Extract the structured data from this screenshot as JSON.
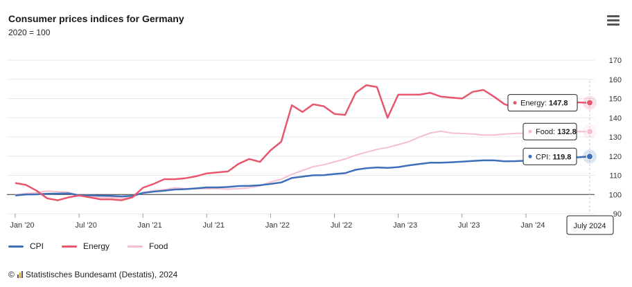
{
  "header": {
    "title": "Consumer prices indices for Germany",
    "subtitle": "2020 = 100"
  },
  "menu": {
    "icon": "hamburger-menu-icon"
  },
  "legend": [
    {
      "label": "CPI",
      "color": "#3d6fb8"
    },
    {
      "label": "Energy",
      "color": "#e8566e"
    },
    {
      "label": "Food",
      "color": "#f5bfcb"
    }
  ],
  "footer": {
    "copyright": "©",
    "source": "Statistisches Bundesamt (Destatis), 2024"
  },
  "hover": {
    "date_label": "July 2024"
  },
  "chart_data": {
    "type": "line",
    "title": "Consumer prices indices for Germany",
    "subtitle": "2020 = 100",
    "ylim": [
      90,
      170
    ],
    "yticks": [
      90,
      100,
      110,
      120,
      130,
      140,
      150,
      160,
      170
    ],
    "x_start": "2020-01",
    "x_end": "2024-07",
    "xticks": [
      "Jan '20",
      "Jul '20",
      "Jan '21",
      "Jul '21",
      "Jan '22",
      "Jul '22",
      "Jan '23",
      "Jul '23",
      "Jan '24"
    ],
    "reference_line": 100,
    "series": [
      {
        "name": "CPI",
        "color": "#3d6fb8",
        "values": [
          99.5,
          100.0,
          100.1,
          100.4,
          100.5,
          100.6,
          99.6,
          99.6,
          99.4,
          99.3,
          99.0,
          99.3,
          100.8,
          101.5,
          102.0,
          102.6,
          102.8,
          103.2,
          103.7,
          103.7,
          103.9,
          104.4,
          104.5,
          104.8,
          105.5,
          106.3,
          108.6,
          109.3,
          110.0,
          110.1,
          110.7,
          111.1,
          112.9,
          113.7,
          114.1,
          113.9,
          114.3,
          115.2,
          115.9,
          116.6,
          116.6,
          116.8,
          117.1,
          117.5,
          117.8,
          117.8,
          117.3,
          117.4,
          117.6,
          118.1,
          118.6,
          119.2,
          119.3,
          119.4,
          119.8
        ],
        "last_label": "CPI: 119.8"
      },
      {
        "name": "Energy",
        "color": "#e8566e",
        "values": [
          106.0,
          105.0,
          102.0,
          98.0,
          97.0,
          98.5,
          99.5,
          98.5,
          97.5,
          97.5,
          97.0,
          98.5,
          103.5,
          105.5,
          108.0,
          108.0,
          108.5,
          109.5,
          111.0,
          111.5,
          112.0,
          116.0,
          118.5,
          117.0,
          123.0,
          127.5,
          146.5,
          143.0,
          147.0,
          146.0,
          142.0,
          141.5,
          153.0,
          157.0,
          156.0,
          140.0,
          152.0,
          152.0,
          152.0,
          153.0,
          151.0,
          150.5,
          150.0,
          153.5,
          154.5,
          151.0,
          147.0,
          145.5,
          146.0,
          147.0,
          148.0,
          148.5,
          148.0,
          148.0,
          147.8
        ],
        "last_label": "Energy: 147.8"
      },
      {
        "name": "Food",
        "color": "#f5bfcb",
        "values": [
          100.0,
          100.5,
          101.0,
          101.8,
          101.5,
          101.2,
          99.5,
          99.0,
          98.5,
          98.5,
          98.0,
          98.5,
          101.0,
          102.0,
          102.5,
          103.5,
          103.0,
          103.0,
          103.0,
          103.0,
          102.8,
          103.0,
          103.5,
          104.5,
          106.5,
          108.0,
          110.5,
          112.5,
          114.5,
          115.5,
          117.0,
          118.5,
          120.5,
          122.0,
          123.5,
          124.5,
          126.0,
          127.5,
          130.0,
          132.0,
          133.0,
          132.0,
          131.8,
          131.5,
          131.0,
          131.0,
          131.5,
          131.8,
          132.0,
          132.2,
          132.5,
          132.5,
          132.8,
          132.8,
          132.8
        ],
        "last_label": "Food: 132.8"
      }
    ]
  }
}
